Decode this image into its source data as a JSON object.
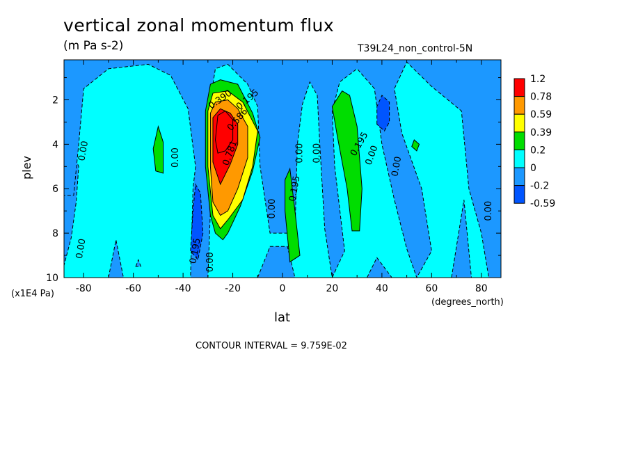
{
  "chart_data": {
    "type": "heatmap",
    "title": "vertical zonal momentum flux",
    "units": "(m Pa s-2)",
    "dataset": "T39L24_non_control-5N",
    "xlabel": "lat",
    "x_units": "(degrees_north)",
    "ylabel": "plev",
    "y_units": "(x1E4 Pa)",
    "contour_interval_text": "CONTOUR INTERVAL = 9.759E-02",
    "xlim": [
      -87.9,
      87.9
    ],
    "ylim": [
      10,
      0.2
    ],
    "x_ticks": [
      -80,
      -60,
      -40,
      -20,
      0,
      20,
      40,
      60,
      80
    ],
    "x_tick_labels": [
      "-80",
      "-60",
      "-40",
      "-20",
      "0",
      "20",
      "40",
      "60",
      "80"
    ],
    "y_ticks": [
      2,
      4,
      6,
      8,
      10
    ],
    "y_tick_labels": [
      "2",
      "4",
      "6",
      "8",
      "10"
    ],
    "colorbar": {
      "levels": [
        "1.2",
        "0.78",
        "0.59",
        "0.39",
        "0.2",
        "0",
        "-0.2",
        "-0.59"
      ],
      "colors": [
        "#ff0000",
        "#ff9900",
        "#ffff00",
        "#00dd00",
        "#00ffff",
        "#1c98ff",
        "#0055ff"
      ]
    },
    "background_color": "#00ffff",
    "regions": [
      {
        "value": -0.1,
        "points": [
          [
            -88,
            9.5
          ],
          [
            -85,
            8.2
          ],
          [
            -83,
            6.6
          ],
          [
            -82,
            5
          ],
          [
            -85,
            4.2
          ],
          [
            -88,
            4.4
          ]
        ]
      },
      {
        "value": -0.1,
        "points": [
          [
            -88,
            0.2
          ],
          [
            -88,
            6.3
          ],
          [
            -84,
            6.3
          ],
          [
            -82,
            4
          ],
          [
            -80,
            1.5
          ],
          [
            -70,
            0.6
          ],
          [
            -54,
            0.4
          ],
          [
            -45,
            0.9
          ],
          [
            -38,
            2.4
          ],
          [
            -35,
            5
          ],
          [
            -36,
            6
          ],
          [
            -37,
            10
          ],
          [
            -30,
            10
          ],
          [
            -29,
            7
          ],
          [
            -29,
            2
          ],
          [
            -27,
            0.6
          ],
          [
            -22,
            0.4
          ],
          [
            -14,
            1.3
          ],
          [
            -10,
            2.3
          ],
          [
            -9,
            5
          ],
          [
            -5,
            8
          ],
          [
            5,
            8
          ],
          [
            6,
            4
          ],
          [
            8,
            2.2
          ],
          [
            11,
            1.2
          ],
          [
            14,
            1.8
          ],
          [
            15,
            4
          ],
          [
            17,
            7.8
          ],
          [
            20,
            10
          ],
          [
            25,
            8.8
          ],
          [
            21,
            5
          ],
          [
            20,
            2.5
          ],
          [
            23,
            1.2
          ],
          [
            30,
            0.6
          ],
          [
            37,
            1.5
          ],
          [
            40,
            4
          ],
          [
            45,
            6.5
          ],
          [
            50,
            8.7
          ],
          [
            54,
            10
          ],
          [
            60,
            8.8
          ],
          [
            56,
            6
          ],
          [
            48,
            3.5
          ],
          [
            45,
            1.5
          ],
          [
            50,
            0.3
          ],
          [
            60,
            1.4
          ],
          [
            72,
            2.5
          ],
          [
            75,
            6
          ],
          [
            80,
            8
          ],
          [
            83,
            10
          ],
          [
            88,
            10
          ],
          [
            88,
            0.2
          ]
        ]
      },
      {
        "value": -0.1,
        "points": [
          [
            -70,
            10
          ],
          [
            -67,
            8.3
          ],
          [
            -64,
            10
          ]
        ]
      },
      {
        "value": -0.1,
        "points": [
          [
            -59,
            9.5
          ],
          [
            -58,
            9.2
          ],
          [
            -57,
            9.5
          ]
        ]
      },
      {
        "value": -0.1,
        "points": [
          [
            -10,
            10
          ],
          [
            -5,
            8.6
          ],
          [
            2,
            8.6
          ],
          [
            5,
            10
          ]
        ]
      },
      {
        "value": -0.1,
        "points": [
          [
            34,
            10
          ],
          [
            38,
            9.1
          ],
          [
            44,
            10
          ]
        ]
      },
      {
        "value": -0.1,
        "points": [
          [
            68,
            10
          ],
          [
            73,
            6.5
          ],
          [
            76,
            10
          ]
        ]
      },
      {
        "value": -0.4,
        "points": [
          [
            -37,
            8.8
          ],
          [
            -36,
            7
          ],
          [
            -35,
            5.8
          ],
          [
            -33,
            6.2
          ],
          [
            -32,
            8
          ],
          [
            -34,
            9.2
          ]
        ]
      },
      {
        "value": -0.4,
        "points": [
          [
            38,
            3.1
          ],
          [
            38,
            2.3
          ],
          [
            40,
            1.8
          ],
          [
            43,
            2.1
          ],
          [
            43,
            3
          ],
          [
            41,
            3.4
          ]
        ]
      },
      {
        "value": 0.3,
        "points": [
          [
            -51,
            5.2
          ],
          [
            -52,
            4.2
          ],
          [
            -50,
            3.2
          ],
          [
            -48,
            3.9
          ],
          [
            -48,
            5.3
          ]
        ]
      },
      {
        "value": 0.3,
        "points": [
          [
            1,
            5.6
          ],
          [
            3,
            5.1
          ],
          [
            5,
            7
          ],
          [
            7,
            9
          ],
          [
            3,
            9.3
          ],
          [
            1,
            7
          ]
        ]
      },
      {
        "value": 0.3,
        "points": [
          [
            20,
            2.3
          ],
          [
            24,
            1.6
          ],
          [
            27,
            1.8
          ],
          [
            30,
            3.2
          ],
          [
            32,
            6
          ],
          [
            31,
            7.9
          ],
          [
            28,
            7.9
          ],
          [
            26,
            6
          ],
          [
            22,
            3.6
          ]
        ]
      },
      {
        "value": 0.3,
        "points": [
          [
            52,
            4.1
          ],
          [
            53,
            3.8
          ],
          [
            55,
            4
          ],
          [
            54,
            4.3
          ]
        ]
      },
      {
        "value": 0.3,
        "points": [
          [
            -31,
            5
          ],
          [
            -31,
            2.5
          ],
          [
            -29,
            1.3
          ],
          [
            -25,
            1.1
          ],
          [
            -18,
            1.3
          ],
          [
            -12,
            2.6
          ],
          [
            -9,
            3.7
          ],
          [
            -12,
            5.2
          ],
          [
            -17,
            6.8
          ],
          [
            -22,
            8
          ],
          [
            -24,
            8.3
          ],
          [
            -27,
            8
          ],
          [
            -29,
            7.2
          ]
        ]
      },
      {
        "value": 0.5,
        "points": [
          [
            -30,
            5
          ],
          [
            -30,
            2.5
          ],
          [
            -28,
            1.7
          ],
          [
            -22,
            1.6
          ],
          [
            -16,
            2.1
          ],
          [
            -10,
            3.4
          ],
          [
            -12,
            5
          ],
          [
            -16,
            6.5
          ],
          [
            -22,
            7.4
          ],
          [
            -25,
            7.8
          ],
          [
            -28,
            7.2
          ]
        ]
      },
      {
        "value": 0.7,
        "points": [
          [
            -29,
            5
          ],
          [
            -29,
            2.6
          ],
          [
            -27,
            2.1
          ],
          [
            -22,
            2
          ],
          [
            -18,
            2.4
          ],
          [
            -14,
            3.2
          ],
          [
            -14,
            4.6
          ],
          [
            -18,
            6
          ],
          [
            -22,
            7
          ],
          [
            -25,
            7.2
          ],
          [
            -28,
            6.6
          ]
        ]
      },
      {
        "value": 0.9,
        "points": [
          [
            -28,
            4.8
          ],
          [
            -28,
            2.8
          ],
          [
            -25,
            2.4
          ],
          [
            -21,
            2.6
          ],
          [
            -18,
            3.1
          ],
          [
            -18,
            4
          ],
          [
            -21,
            4.9
          ],
          [
            -25,
            5.8
          ]
        ]
      },
      {
        "value": 1.3,
        "points": [
          [
            -27,
            3.8
          ],
          [
            -26,
            2.7
          ],
          [
            -23,
            2.5
          ],
          [
            -20,
            2.9
          ],
          [
            -20,
            3.8
          ],
          [
            -23,
            4.3
          ],
          [
            -26,
            4.4
          ]
        ]
      }
    ],
    "contour_labels": [
      {
        "text": "0.00",
        "x": -80,
        "y": 4.3,
        "rotate": -80
      },
      {
        "text": "0.00",
        "x": -81,
        "y": 8.7,
        "rotate": -80
      },
      {
        "text": "0.00",
        "x": -43,
        "y": 4.6,
        "rotate": -90
      },
      {
        "text": "0.195",
        "x": -35,
        "y": 8.8,
        "rotate": -80
      },
      {
        "text": "0.00",
        "x": -29,
        "y": 9.3,
        "rotate": -90
      },
      {
        "text": "0.390",
        "x": -25,
        "y": 2.0,
        "rotate": -35
      },
      {
        "text": "0.586",
        "x": -18,
        "y": 2.9,
        "rotate": -50
      },
      {
        "text": "0.195",
        "x": -14,
        "y": 2.0,
        "rotate": -40
      },
      {
        "text": "0.781",
        "x": -21,
        "y": 4.4,
        "rotate": -70
      },
      {
        "text": "0.00",
        "x": -4,
        "y": 6.9,
        "rotate": -90
      },
      {
        "text": "0.00",
        "x": 7,
        "y": 4.4,
        "rotate": -90
      },
      {
        "text": "0.195",
        "x": 5,
        "y": 6.0,
        "rotate": -80
      },
      {
        "text": "0.00",
        "x": 14,
        "y": 4.4,
        "rotate": -90
      },
      {
        "text": "0.195",
        "x": 31,
        "y": 4.0,
        "rotate": -60
      },
      {
        "text": "0.00",
        "x": 36,
        "y": 4.5,
        "rotate": -70
      },
      {
        "text": "0.00",
        "x": 46,
        "y": 5.0,
        "rotate": -80
      },
      {
        "text": "0.00",
        "x": 83,
        "y": 7.0,
        "rotate": -90
      }
    ]
  }
}
